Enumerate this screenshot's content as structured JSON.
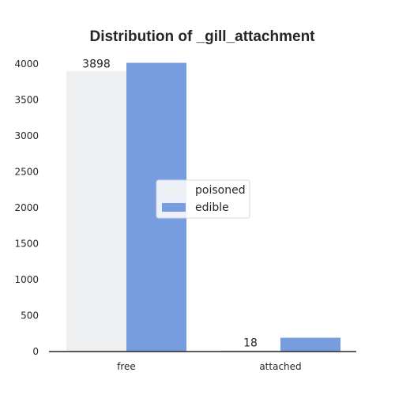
{
  "chart_data": {
    "type": "bar",
    "title": "Distribution of _gill_attachment",
    "xlabel": "",
    "ylabel": "",
    "categories": [
      "free",
      "attached"
    ],
    "series": [
      {
        "name": "poisoned",
        "values": [
          3898,
          18
        ],
        "color": "#eeeff1"
      },
      {
        "name": "edible",
        "values": [
          4016,
          192
        ],
        "color": "#779ddf"
      }
    ],
    "data_labels": [
      {
        "series": "poisoned",
        "category": "free",
        "text": "3898"
      },
      {
        "series": "poisoned",
        "category": "attached",
        "text": "18"
      }
    ],
    "ylim": [
      0,
      4200
    ],
    "yticks": [
      0,
      500,
      1000,
      1500,
      2000,
      2500,
      3000,
      3500,
      4000
    ],
    "grid": false,
    "legend_placement": "center"
  }
}
